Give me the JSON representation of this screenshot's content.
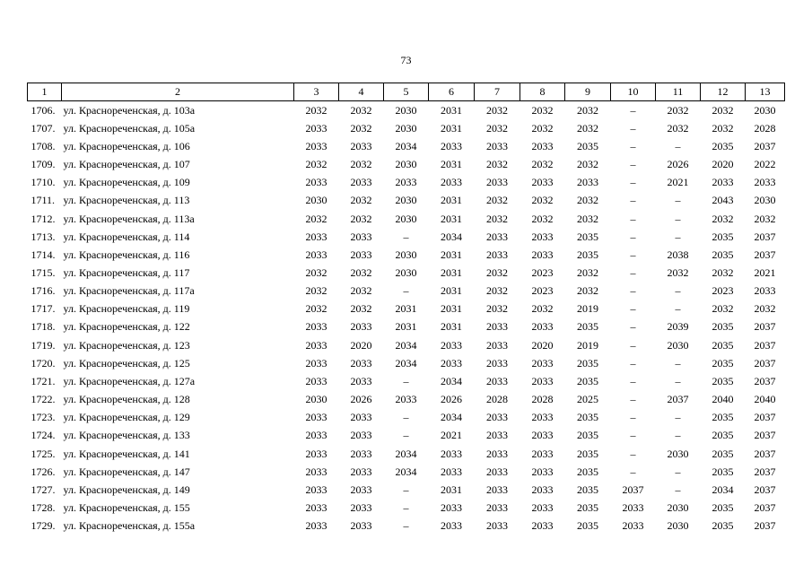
{
  "page_number": "73",
  "table": {
    "header": [
      "1",
      "2",
      "3",
      "4",
      "5",
      "6",
      "7",
      "8",
      "9",
      "10",
      "11",
      "12",
      "13"
    ],
    "rows": [
      [
        "1706.",
        "ул. Краснореченская, д. 103а",
        "2032",
        "2032",
        "2030",
        "2031",
        "2032",
        "2032",
        "2032",
        "–",
        "2032",
        "2032",
        "2030"
      ],
      [
        "1707.",
        "ул. Краснореченская, д. 105а",
        "2033",
        "2032",
        "2030",
        "2031",
        "2032",
        "2032",
        "2032",
        "–",
        "2032",
        "2032",
        "2028"
      ],
      [
        "1708.",
        "ул. Краснореченская, д. 106",
        "2033",
        "2033",
        "2034",
        "2033",
        "2033",
        "2033",
        "2035",
        "–",
        "–",
        "2035",
        "2037"
      ],
      [
        "1709.",
        "ул. Краснореченская, д. 107",
        "2032",
        "2032",
        "2030",
        "2031",
        "2032",
        "2032",
        "2032",
        "–",
        "2026",
        "2020",
        "2022"
      ],
      [
        "1710.",
        "ул. Краснореченская, д. 109",
        "2033",
        "2033",
        "2033",
        "2033",
        "2033",
        "2033",
        "2033",
        "–",
        "2021",
        "2033",
        "2033"
      ],
      [
        "1711.",
        "ул. Краснореченская, д. 113",
        "2030",
        "2032",
        "2030",
        "2031",
        "2032",
        "2032",
        "2032",
        "–",
        "–",
        "2043",
        "2030"
      ],
      [
        "1712.",
        "ул. Краснореченская, д. 113а",
        "2032",
        "2032",
        "2030",
        "2031",
        "2032",
        "2032",
        "2032",
        "–",
        "–",
        "2032",
        "2032"
      ],
      [
        "1713.",
        "ул. Краснореченская, д. 114",
        "2033",
        "2033",
        "–",
        "2034",
        "2033",
        "2033",
        "2035",
        "–",
        "–",
        "2035",
        "2037"
      ],
      [
        "1714.",
        "ул. Краснореченская, д. 116",
        "2033",
        "2033",
        "2030",
        "2031",
        "2033",
        "2033",
        "2035",
        "–",
        "2038",
        "2035",
        "2037"
      ],
      [
        "1715.",
        "ул. Краснореченская, д. 117",
        "2032",
        "2032",
        "2030",
        "2031",
        "2032",
        "2023",
        "2032",
        "–",
        "2032",
        "2032",
        "2021"
      ],
      [
        "1716.",
        "ул. Краснореченская, д. 117а",
        "2032",
        "2032",
        "–",
        "2031",
        "2032",
        "2023",
        "2032",
        "–",
        "–",
        "2023",
        "2033"
      ],
      [
        "1717.",
        "ул. Краснореченская, д. 119",
        "2032",
        "2032",
        "2031",
        "2031",
        "2032",
        "2032",
        "2019",
        "–",
        "–",
        "2032",
        "2032"
      ],
      [
        "1718.",
        "ул. Краснореченская, д. 122",
        "2033",
        "2033",
        "2031",
        "2031",
        "2033",
        "2033",
        "2035",
        "–",
        "2039",
        "2035",
        "2037"
      ],
      [
        "1719.",
        "ул. Краснореченская, д. 123",
        "2033",
        "2020",
        "2034",
        "2033",
        "2033",
        "2020",
        "2019",
        "–",
        "2030",
        "2035",
        "2037"
      ],
      [
        "1720.",
        "ул. Краснореченская, д. 125",
        "2033",
        "2033",
        "2034",
        "2033",
        "2033",
        "2033",
        "2035",
        "–",
        "–",
        "2035",
        "2037"
      ],
      [
        "1721.",
        "ул. Краснореченская, д. 127а",
        "2033",
        "2033",
        "–",
        "2034",
        "2033",
        "2033",
        "2035",
        "–",
        "–",
        "2035",
        "2037"
      ],
      [
        "1722.",
        "ул. Краснореченская, д. 128",
        "2030",
        "2026",
        "2033",
        "2026",
        "2028",
        "2028",
        "2025",
        "–",
        "2037",
        "2040",
        "2040"
      ],
      [
        "1723.",
        "ул. Краснореченская, д. 129",
        "2033",
        "2033",
        "–",
        "2034",
        "2033",
        "2033",
        "2035",
        "–",
        "–",
        "2035",
        "2037"
      ],
      [
        "1724.",
        "ул. Краснореченская, д. 133",
        "2033",
        "2033",
        "–",
        "2021",
        "2033",
        "2033",
        "2035",
        "–",
        "–",
        "2035",
        "2037"
      ],
      [
        "1725.",
        "ул. Краснореченская, д. 141",
        "2033",
        "2033",
        "2034",
        "2033",
        "2033",
        "2033",
        "2035",
        "–",
        "2030",
        "2035",
        "2037"
      ],
      [
        "1726.",
        "ул. Краснореченская, д. 147",
        "2033",
        "2033",
        "2034",
        "2033",
        "2033",
        "2033",
        "2035",
        "–",
        "–",
        "2035",
        "2037"
      ],
      [
        "1727.",
        "ул. Краснореченская, д. 149",
        "2033",
        "2033",
        "–",
        "2031",
        "2033",
        "2033",
        "2035",
        "2037",
        "–",
        "2034",
        "2037"
      ],
      [
        "1728.",
        "ул. Краснореченская, д. 155",
        "2033",
        "2033",
        "–",
        "2033",
        "2033",
        "2033",
        "2035",
        "2033",
        "2030",
        "2035",
        "2037"
      ],
      [
        "1729.",
        "ул. Краснореченская, д. 155а",
        "2033",
        "2033",
        "–",
        "2033",
        "2033",
        "2033",
        "2035",
        "2033",
        "2030",
        "2035",
        "2037"
      ]
    ]
  }
}
